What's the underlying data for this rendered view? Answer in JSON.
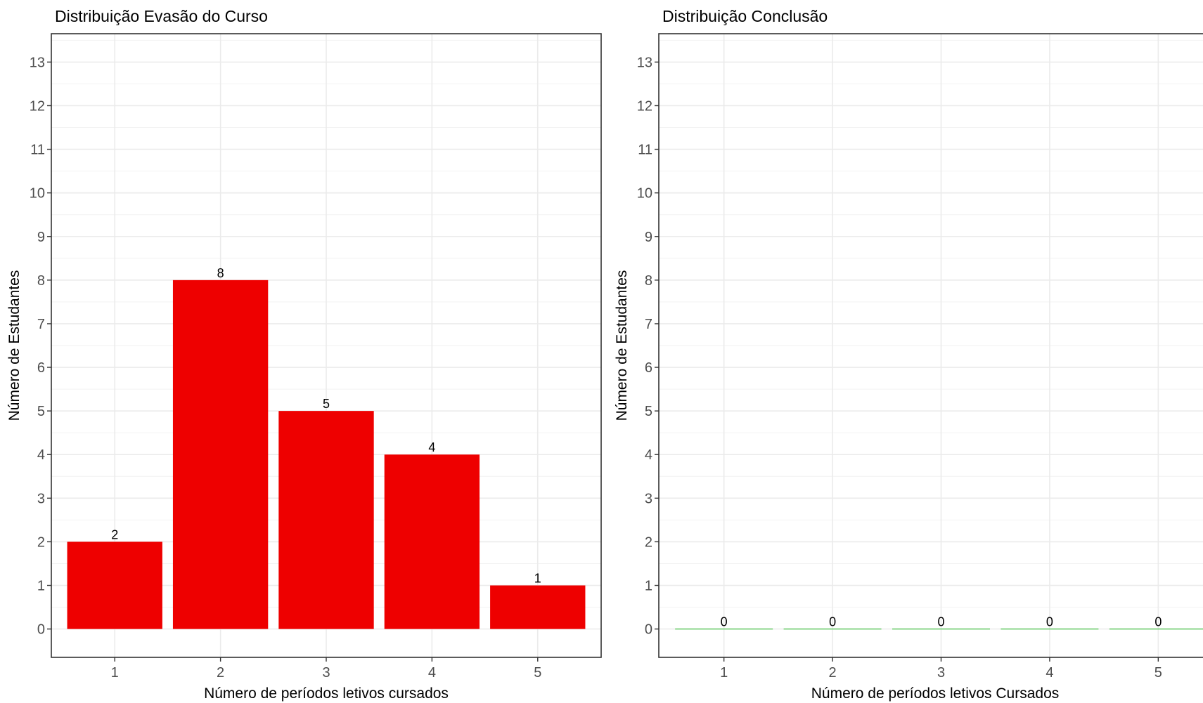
{
  "chart_data": [
    {
      "type": "bar",
      "title": "Distribuição Evasão do Curso",
      "xlabel": "Número de períodos letivos cursados",
      "ylabel": "Número de Estudantes",
      "categories": [
        "1",
        "2",
        "3",
        "4",
        "5"
      ],
      "values": [
        2,
        8,
        5,
        4,
        1
      ],
      "data_labels": [
        "2",
        "8",
        "5",
        "4",
        "1"
      ],
      "yticks": [
        "0",
        "1",
        "2",
        "3",
        "4",
        "5",
        "6",
        "7",
        "8",
        "9",
        "10",
        "11",
        "12",
        "13"
      ],
      "ylim": [
        -0.65,
        13.65
      ],
      "grid": true,
      "bar_color": "#ee0000"
    },
    {
      "type": "bar",
      "title": "Distribuição Conclusão",
      "xlabel": "Número de períodos letivos Cursados",
      "ylabel": "Número de Estudantes",
      "categories": [
        "1",
        "2",
        "3",
        "4",
        "5"
      ],
      "values": [
        0,
        0,
        0,
        0,
        0
      ],
      "data_labels": [
        "0",
        "0",
        "0",
        "0",
        "0"
      ],
      "yticks": [
        "0",
        "1",
        "2",
        "3",
        "4",
        "5",
        "6",
        "7",
        "8",
        "9",
        "10",
        "11",
        "12",
        "13"
      ],
      "ylim": [
        -0.65,
        13.65
      ],
      "grid": true,
      "bar_color": "#66cc66"
    }
  ]
}
